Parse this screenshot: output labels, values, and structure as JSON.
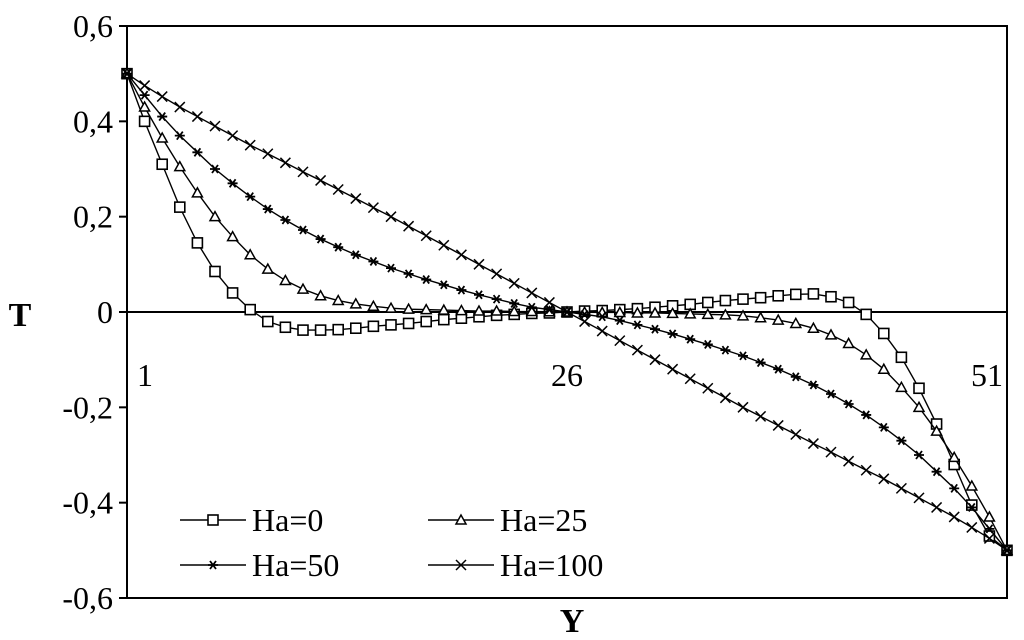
{
  "chart_data": {
    "type": "line",
    "title": "",
    "xlabel": "Y",
    "ylabel": "T",
    "xlim": [
      1,
      51
    ],
    "ylim": [
      -0.6,
      0.6
    ],
    "x_tick_labels": [
      {
        "value": 1,
        "label": "1"
      },
      {
        "value": 26,
        "label": "26"
      },
      {
        "value": 51,
        "label": "51"
      }
    ],
    "y_tick_labels": [
      {
        "value": 0.6,
        "label": "0,6"
      },
      {
        "value": 0.4,
        "label": "0,4"
      },
      {
        "value": 0.2,
        "label": "0,2"
      },
      {
        "value": 0,
        "label": "0"
      },
      {
        "value": -0.2,
        "label": "-0,2"
      },
      {
        "value": -0.4,
        "label": "-0,4"
      },
      {
        "value": -0.6,
        "label": "-0,6"
      }
    ],
    "grid": false,
    "legend_position": "bottom-left",
    "series": [
      {
        "name": "Ha=0",
        "marker": "square",
        "x": [
          1,
          2,
          3,
          4,
          5,
          6,
          7,
          8,
          9,
          10,
          11,
          12,
          13,
          14,
          15,
          16,
          17,
          18,
          19,
          20,
          21,
          22,
          23,
          24,
          25,
          26,
          27,
          28,
          29,
          30,
          31,
          32,
          33,
          34,
          35,
          36,
          37,
          38,
          39,
          40,
          41,
          42,
          43,
          44,
          45,
          46,
          47,
          48,
          49,
          50,
          51
        ],
        "values": [
          0.5,
          0.4,
          0.31,
          0.22,
          0.145,
          0.085,
          0.04,
          0.005,
          -0.02,
          -0.032,
          -0.038,
          -0.038,
          -0.037,
          -0.034,
          -0.03,
          -0.027,
          -0.024,
          -0.02,
          -0.016,
          -0.013,
          -0.01,
          -0.007,
          -0.005,
          -0.003,
          -0.002,
          0,
          0.002,
          0.003,
          0.005,
          0.007,
          0.01,
          0.013,
          0.016,
          0.02,
          0.024,
          0.027,
          0.03,
          0.034,
          0.037,
          0.038,
          0.032,
          0.02,
          -0.005,
          -0.045,
          -0.095,
          -0.16,
          -0.235,
          -0.32,
          -0.405,
          -0.47,
          -0.5
        ]
      },
      {
        "name": "Ha=25",
        "marker": "triangle",
        "x": [
          1,
          2,
          3,
          4,
          5,
          6,
          7,
          8,
          9,
          10,
          11,
          12,
          13,
          14,
          15,
          16,
          17,
          18,
          19,
          20,
          21,
          22,
          23,
          24,
          25,
          26,
          27,
          28,
          29,
          30,
          31,
          32,
          33,
          34,
          35,
          36,
          37,
          38,
          39,
          40,
          41,
          42,
          43,
          44,
          45,
          46,
          47,
          48,
          49,
          50,
          51
        ],
        "values": [
          0.5,
          0.43,
          0.365,
          0.305,
          0.25,
          0.2,
          0.158,
          0.12,
          0.09,
          0.066,
          0.048,
          0.034,
          0.024,
          0.017,
          0.012,
          0.008,
          0.006,
          0.005,
          0.004,
          0.003,
          0.002,
          0.002,
          0.001,
          0.001,
          0.0005,
          0,
          -0.0005,
          -0.001,
          -0.001,
          -0.002,
          -0.002,
          -0.003,
          -0.004,
          -0.005,
          -0.006,
          -0.008,
          -0.012,
          -0.017,
          -0.024,
          -0.034,
          -0.048,
          -0.066,
          -0.09,
          -0.12,
          -0.158,
          -0.2,
          -0.25,
          -0.305,
          -0.365,
          -0.43,
          -0.5
        ]
      },
      {
        "name": "Ha=50",
        "marker": "star",
        "x": [
          1,
          2,
          3,
          4,
          5,
          6,
          7,
          8,
          9,
          10,
          11,
          12,
          13,
          14,
          15,
          16,
          17,
          18,
          19,
          20,
          21,
          22,
          23,
          24,
          25,
          26,
          27,
          28,
          29,
          30,
          31,
          32,
          33,
          34,
          35,
          36,
          37,
          38,
          39,
          40,
          41,
          42,
          43,
          44,
          45,
          46,
          47,
          48,
          49,
          50,
          51
        ],
        "values": [
          0.5,
          0.455,
          0.41,
          0.37,
          0.335,
          0.3,
          0.27,
          0.242,
          0.216,
          0.193,
          0.172,
          0.153,
          0.136,
          0.12,
          0.106,
          0.092,
          0.08,
          0.068,
          0.057,
          0.046,
          0.036,
          0.027,
          0.018,
          0.01,
          0.005,
          0,
          -0.005,
          -0.01,
          -0.018,
          -0.027,
          -0.036,
          -0.046,
          -0.057,
          -0.068,
          -0.08,
          -0.092,
          -0.106,
          -0.12,
          -0.136,
          -0.153,
          -0.172,
          -0.193,
          -0.216,
          -0.242,
          -0.27,
          -0.3,
          -0.335,
          -0.37,
          -0.41,
          -0.455,
          -0.5
        ]
      },
      {
        "name": "Ha=100",
        "marker": "x",
        "x": [
          1,
          2,
          3,
          4,
          5,
          6,
          7,
          8,
          9,
          10,
          11,
          12,
          13,
          14,
          15,
          16,
          17,
          18,
          19,
          20,
          21,
          22,
          23,
          24,
          25,
          26,
          27,
          28,
          29,
          30,
          31,
          32,
          33,
          34,
          35,
          36,
          37,
          38,
          39,
          40,
          41,
          42,
          43,
          44,
          45,
          46,
          47,
          48,
          49,
          50,
          51
        ],
        "values": [
          0.5,
          0.475,
          0.452,
          0.43,
          0.41,
          0.39,
          0.37,
          0.35,
          0.332,
          0.313,
          0.294,
          0.276,
          0.257,
          0.238,
          0.219,
          0.2,
          0.18,
          0.16,
          0.14,
          0.12,
          0.1,
          0.08,
          0.06,
          0.04,
          0.02,
          0,
          -0.02,
          -0.04,
          -0.06,
          -0.08,
          -0.1,
          -0.12,
          -0.14,
          -0.16,
          -0.18,
          -0.2,
          -0.219,
          -0.238,
          -0.257,
          -0.276,
          -0.294,
          -0.313,
          -0.332,
          -0.35,
          -0.37,
          -0.39,
          -0.41,
          -0.43,
          -0.452,
          -0.475,
          -0.5
        ]
      }
    ]
  }
}
